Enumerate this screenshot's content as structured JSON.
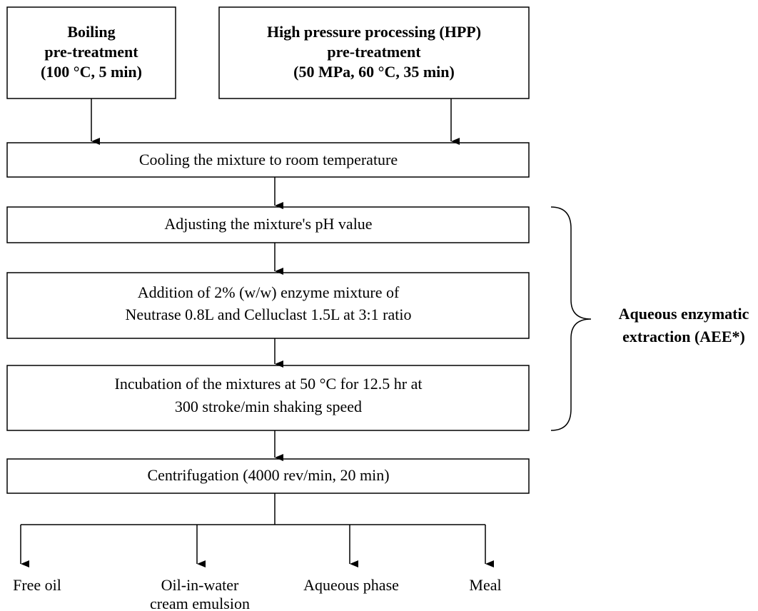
{
  "nodes": [
    {
      "lines": [
        "Boiling",
        "pre-treatment",
        "(100 °C, 5 min)"
      ]
    },
    {
      "lines": [
        "High pressure processing (HPP)",
        "pre-treatment",
        "(50 MPa, 60 °C, 35 min)"
      ]
    },
    {
      "lines": [
        "Cooling the mixture to room temperature"
      ]
    },
    {
      "lines": [
        "Adjusting the mixture's pH value"
      ]
    },
    {
      "lines": [
        "Addition of 2% (w/w) enzyme mixture of",
        "Neutrase 0.8L and Celluclast 1.5L at 3:1 ratio"
      ]
    },
    {
      "lines": [
        "Incubation of the mixtures at 50 °C for 12.5 hr at",
        "300 stroke/min shaking speed"
      ]
    },
    {
      "lines": [
        "Centrifugation (4000 rev/min, 20 min)"
      ]
    }
  ],
  "outputs": [
    {
      "lines": [
        "Free oil"
      ]
    },
    {
      "lines": [
        "Oil-in-water",
        "cream emulsion"
      ]
    },
    {
      "lines": [
        "Aqueous phase"
      ]
    },
    {
      "lines": [
        "Meal"
      ]
    }
  ],
  "bracket": {
    "lines": [
      "Aqueous enzymatic",
      "extraction (AEE*)"
    ]
  }
}
